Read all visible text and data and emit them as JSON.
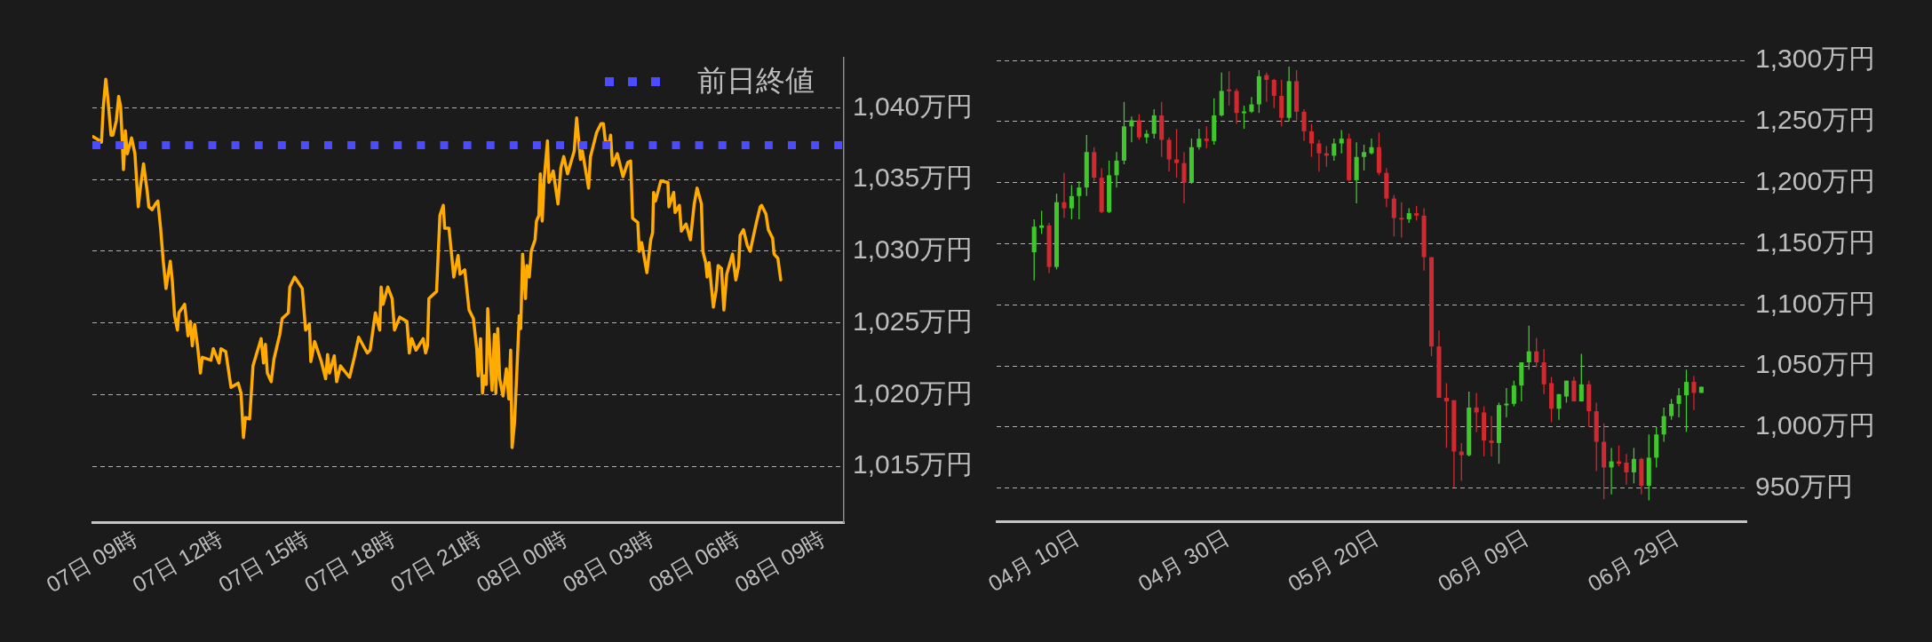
{
  "chart_data": [
    {
      "type": "line",
      "color": "#ffab00",
      "x": [
        "--07-07T09:01",
        "--07-07T09:11",
        "--07-07T09:19",
        "--07-07T09:23",
        "--07-07T09:28",
        "--07-07T09:32",
        "--07-07T09:39",
        "--07-07T09:43",
        "--07-07T09:50",
        "--07-07T09:55",
        "--07-07T09:59",
        "--07-07T10:02",
        "--07-07T10:05",
        "--07-07T10:09",
        "--07-07T10:13",
        "--07-07T10:22",
        "--07-07T10:29",
        "--07-07T10:36",
        "--07-07T10:41",
        "--07-07T10:47",
        "--07-07T10:55",
        "--07-07T10:58",
        "--07-07T11:05",
        "--07-07T11:12",
        "--07-07T11:17",
        "--07-07T11:23",
        "--07-07T11:28",
        "--07-07T11:34",
        "--07-07T11:43",
        "--07-07T11:47",
        "--07-07T11:52",
        "--07-07T11:58",
        "--07-07T12:01",
        "--07-07T12:13",
        "--07-07T12:20",
        "--07-07T12:25",
        "--07-07T12:29",
        "--07-07T12:34",
        "--07-07T12:40",
        "--07-07T12:46",
        "--07-07T12:50",
        "--07-07T13:08",
        "--07-07T13:13",
        "--07-07T13:25",
        "--07-07T13:29",
        "--07-07T13:39",
        "--07-07T13:50",
        "--07-07T14:05",
        "--07-07T14:11",
        "--07-07T14:16",
        "--07-07T14:20",
        "--07-07T14:29",
        "--07-07T14:36",
        "--07-07T14:43",
        "--07-07T14:53",
        "--07-07T14:58",
        "--07-07T15:02",
        "--07-07T15:06",
        "--07-07T15:14",
        "--07-07T15:20",
        "--07-07T15:32",
        "--07-07T15:37",
        "--07-07T15:50",
        "--07-07T15:53",
        "--07-07T16:03",
        "--07-07T16:19",
        "--07-07T16:26",
        "--07-07T16:34",
        "--07-07T16:37",
        "--07-07T16:45",
        "--07-07T16:59",
        "--07-07T17:08",
        "--07-07T17:12",
        "--07-07T17:16",
        "--07-07T17:26",
        "--07-07T17:31",
        "--07-07T17:39",
        "--07-07T17:58",
        "--07-07T18:08",
        "--07-07T18:17",
        "--07-07T18:35",
        "--07-07T18:41",
        "--07-07T18:52",
        "--07-07T19:01",
        "--07-07T19:04",
        "--07-07T19:08",
        "--07-07T19:18",
        "--07-07T19:27",
        "--07-07T19:32",
        "--07-07T19:43",
        "--07-07T19:58",
        "--07-07T20:03",
        "--07-07T20:08",
        "--07-07T20:17",
        "--07-07T20:32",
        "--07-07T20:37",
        "--07-07T20:41",
        "--07-07T20:44",
        "--07-07T21:00",
        "--07-07T21:07",
        "--07-07T21:14",
        "--07-07T21:17",
        "--07-07T21:26",
        "--07-07T21:36",
        "--07-07T21:45",
        "--07-07T21:49",
        "--07-07T21:59",
        "--07-07T22:08",
        "--07-07T22:17",
        "--07-07T22:24",
        "--07-07T22:27",
        "--07-07T22:32",
        "--07-07T22:36",
        "--07-07T22:40",
        "--07-07T22:44",
        "--07-07T22:47",
        "--07-07T22:53",
        "--07-07T22:56",
        "--07-07T23:01",
        "--07-07T23:04",
        "--07-07T23:08",
        "--07-07T23:12",
        "--07-07T23:19",
        "--07-07T23:26",
        "--07-07T23:31",
        "--07-07T23:35",
        "--07-07T23:38",
        "--07-07T23:43",
        "--07-07T23:47",
        "--07-07T23:53",
        "--07-07T23:56",
        "--07-08T00:00",
        "--07-08T00:06",
        "--07-08T00:09",
        "--07-08T00:14",
        "--07-08T00:18",
        "--07-08T00:26",
        "--07-08T00:29",
        "--07-08T00:34",
        "--07-08T00:37",
        "--07-08T00:41",
        "--07-08T00:45",
        "--07-08T00:52",
        "--07-08T00:55",
        "--07-08T01:04",
        "--07-08T01:14",
        "--07-08T01:20",
        "--07-08T01:26",
        "--07-08T01:34",
        "--07-08T01:48",
        "--07-08T01:53",
        "--07-08T02:01",
        "--07-08T02:05",
        "--07-08T02:13",
        "--07-08T02:18",
        "--07-08T02:22",
        "--07-08T02:35",
        "--07-08T02:44",
        "--07-08T02:49",
        "--07-08T02:53",
        "--07-08T03:01",
        "--07-08T03:04",
        "--07-08T03:08",
        "--07-08T03:18",
        "--07-08T03:30",
        "--07-08T03:40",
        "--07-08T03:46",
        "--07-08T03:50",
        "--07-08T04:01",
        "--07-08T04:04",
        "--07-08T04:09",
        "--07-08T04:20",
        "--07-08T04:28",
        "--07-08T04:32",
        "--07-08T04:34",
        "--07-08T04:38",
        "--07-08T04:49",
        "--07-08T05:04",
        "--07-08T05:06",
        "--07-08T05:16",
        "--07-08T05:19",
        "--07-08T05:28",
        "--07-08T05:32",
        "--07-08T05:42",
        "--07-08T05:51",
        "--07-08T05:59",
        "--07-08T06:05",
        "--07-08T06:14",
        "--07-08T06:17",
        "--07-08T06:23",
        "--07-08T06:26",
        "--07-08T06:30",
        "--07-08T06:39",
        "--07-08T06:45",
        "--07-08T06:49",
        "--07-08T06:56",
        "--07-08T07:01",
        "--07-08T07:07",
        "--07-08T07:19",
        "--07-08T07:26",
        "--07-08T07:32",
        "--07-08T07:35",
        "--07-08T07:42",
        "--07-08T07:50",
        "--07-08T07:56",
        "--07-08T08:09",
        "--07-08T08:17",
        "--07-08T08:20",
        "--07-08T08:29",
        "--07-08T08:34",
        "--07-08T08:43",
        "--07-08T08:46",
        "--07-08T08:54",
        "--07-08T09:00"
      ],
      "values": [
        1038.0,
        1037.8,
        1037.6,
        1040.1,
        1042.0,
        1040.8,
        1038.1,
        1038.1,
        1039.1,
        1040.8,
        1040.1,
        1038.1,
        1035.7,
        1038.4,
        1036.8,
        1037.9,
        1036.8,
        1033.1,
        1034.6,
        1036.1,
        1034.1,
        1033.1,
        1032.9,
        1033.3,
        1033.5,
        1031.5,
        1029.4,
        1027.4,
        1029.3,
        1028.0,
        1025.5,
        1024.5,
        1025.7,
        1026.3,
        1024.1,
        1025.1,
        1023.4,
        1024.9,
        1023.4,
        1021.5,
        1022.6,
        1022.4,
        1023.2,
        1022.2,
        1023.2,
        1023.0,
        1020.5,
        1020.8,
        1020.1,
        1017.0,
        1018.4,
        1018.3,
        1022.0,
        1022.8,
        1023.9,
        1022.2,
        1023.5,
        1021.5,
        1020.9,
        1022.5,
        1024.2,
        1025.3,
        1025.7,
        1027.5,
        1028.2,
        1027.4,
        1024.5,
        1024.9,
        1022.3,
        1023.7,
        1022.3,
        1021.1,
        1022.8,
        1021.5,
        1022.7,
        1020.9,
        1022.0,
        1021.2,
        1022.6,
        1024.0,
        1022.9,
        1023.1,
        1025.7,
        1024.5,
        1027.5,
        1026.3,
        1027.5,
        1026.7,
        1024.5,
        1025.4,
        1025.1,
        1022.9,
        1023.9,
        1023.1,
        1023.9,
        1022.9,
        1023.4,
        1026.7,
        1027.2,
        1032.5,
        1033.2,
        1031.6,
        1031.6,
        1028.2,
        1029.7,
        1028.4,
        1028.7,
        1025.9,
        1025.3,
        1023.2,
        1021.3,
        1023.9,
        1020.1,
        1021.3,
        1020.7,
        1026.0,
        1022.0,
        1020.3,
        1024.2,
        1020.1,
        1024.6,
        1021.1,
        1019.9,
        1021.8,
        1019.7,
        1023.1,
        1016.3,
        1018.0,
        1020.9,
        1025.5,
        1024.6,
        1029.8,
        1026.7,
        1029.0,
        1028.2,
        1030.0,
        1030.8,
        1032.1,
        1032.5,
        1035.4,
        1032.1,
        1035.0,
        1037.7,
        1034.8,
        1035.6,
        1033.3,
        1035.8,
        1036.6,
        1035.4,
        1037.0,
        1039.3,
        1036.4,
        1037.0,
        1035.4,
        1034.4,
        1036.6,
        1038.3,
        1038.9,
        1038.9,
        1037.7,
        1037.5,
        1038.1,
        1036.0,
        1036.8,
        1035.2,
        1036.2,
        1036.3,
        1032.3,
        1032.0,
        1030.0,
        1030.6,
        1028.5,
        1030.8,
        1031.3,
        1034.1,
        1033.5,
        1034.9,
        1034.8,
        1033.1,
        1034.1,
        1032.7,
        1033.2,
        1031.4,
        1031.9,
        1030.8,
        1033.3,
        1034.4,
        1033.3,
        1030.0,
        1029.2,
        1028.2,
        1029.2,
        1026.1,
        1027.3,
        1029.0,
        1028.8,
        1025.9,
        1028.4,
        1029.8,
        1028.0,
        1029.0,
        1031.1,
        1031.5,
        1030.4,
        1030.0,
        1032.0,
        1033.1,
        1033.2,
        1032.6,
        1031.5,
        1030.9,
        1029.8,
        1029.5,
        1028.0
      ],
      "xlim": [
        "--07-07T09:00",
        "--07-08T11:12"
      ],
      "xticks": [
        {
          "value": "--07-07T09:00",
          "label": "07日 09時"
        },
        {
          "value": "--07-07T12:00",
          "label": "07日 12時"
        },
        {
          "value": "--07-07T15:00",
          "label": "07日 15時"
        },
        {
          "value": "--07-07T18:00",
          "label": "07日 18時"
        },
        {
          "value": "--07-07T21:00",
          "label": "07日 21時"
        },
        {
          "value": "--07-08T00:00",
          "label": "08日 00時"
        },
        {
          "value": "--07-08T03:00",
          "label": "08日 03時"
        },
        {
          "value": "--07-08T06:00",
          "label": "08日 06時"
        },
        {
          "value": "--07-08T09:00",
          "label": "08日 09時"
        }
      ],
      "ylim": [
        1011.1,
        1043.5
      ],
      "yticks": [
        {
          "value": 1015,
          "label": "1,015万円"
        },
        {
          "value": 1020,
          "label": "1,020万円"
        },
        {
          "value": 1025,
          "label": "1,025万円"
        },
        {
          "value": 1030,
          "label": "1,030万円"
        },
        {
          "value": 1035,
          "label": "1,035万円"
        },
        {
          "value": 1040,
          "label": "1,040万円"
        }
      ],
      "ref_lines": [
        {
          "axis": "y",
          "value": 1037.4,
          "label": "前日終値",
          "color": "#4b4bff",
          "line_style": "dotted"
        }
      ],
      "grid": "y",
      "legend": "top right"
    },
    {
      "type": "candlestick",
      "x": [
        "--04-10",
        "--04-11",
        "--04-12",
        "--04-13",
        "--04-14",
        "--04-15",
        "--04-16",
        "--04-17",
        "--04-18",
        "--04-19",
        "--04-20",
        "--04-21",
        "--04-22",
        "--04-23",
        "--04-24",
        "--04-25",
        "--04-26",
        "--04-27",
        "--04-28",
        "--04-29",
        "--04-30",
        "--05-01",
        "--05-02",
        "--05-03",
        "--05-04",
        "--05-05",
        "--05-06",
        "--05-07",
        "--05-08",
        "--05-09",
        "--05-10",
        "--05-11",
        "--05-12",
        "--05-13",
        "--05-14",
        "--05-15",
        "--05-16",
        "--05-17",
        "--05-18",
        "--05-19",
        "--05-20",
        "--05-21",
        "--05-22",
        "--05-23",
        "--05-24",
        "--05-25",
        "--05-26",
        "--05-27",
        "--05-28",
        "--05-29",
        "--05-30",
        "--05-31",
        "--06-01",
        "--06-02",
        "--06-03",
        "--06-04",
        "--06-05",
        "--06-06",
        "--06-07",
        "--06-08",
        "--06-09",
        "--06-10",
        "--06-11",
        "--06-12",
        "--06-13",
        "--06-14",
        "--06-15",
        "--06-16",
        "--06-17",
        "--06-18",
        "--06-19",
        "--06-20",
        "--06-21",
        "--06-22",
        "--06-23",
        "--06-24",
        "--06-25",
        "--06-26",
        "--06-27",
        "--06-28",
        "--06-29",
        "--06-30",
        "--07-01",
        "--07-02",
        "--07-03",
        "--07-04",
        "--07-05",
        "--07-06",
        "--07-07",
        "--07-08"
      ],
      "ohlc": [
        [
          1143,
          1170,
          1120,
          1164
        ],
        [
          1163,
          1177,
          1158,
          1165
        ],
        [
          1165,
          1167,
          1126,
          1131
        ],
        [
          1131,
          1191,
          1129,
          1184
        ],
        [
          1184,
          1208,
          1171,
          1179
        ],
        [
          1179,
          1198,
          1170,
          1189
        ],
        [
          1189,
          1201,
          1170,
          1196
        ],
        [
          1196,
          1239,
          1189,
          1225
        ],
        [
          1225,
          1229,
          1201,
          1204
        ],
        [
          1204,
          1212,
          1175,
          1176
        ],
        [
          1176,
          1218,
          1175,
          1206
        ],
        [
          1206,
          1225,
          1196,
          1218
        ],
        [
          1218,
          1266,
          1215,
          1246
        ],
        [
          1246,
          1254,
          1233,
          1251
        ],
        [
          1251,
          1256,
          1235,
          1237
        ],
        [
          1237,
          1243,
          1232,
          1240
        ],
        [
          1240,
          1260,
          1236,
          1255
        ],
        [
          1255,
          1266,
          1221,
          1235
        ],
        [
          1235,
          1237,
          1209,
          1219
        ],
        [
          1219,
          1244,
          1204,
          1216
        ],
        [
          1216,
          1225,
          1183,
          1200
        ],
        [
          1200,
          1236,
          1199,
          1229
        ],
        [
          1229,
          1244,
          1227,
          1236
        ],
        [
          1236,
          1246,
          1228,
          1234
        ],
        [
          1234,
          1269,
          1231,
          1255
        ],
        [
          1255,
          1290,
          1254,
          1275
        ],
        [
          1276,
          1291,
          1263,
          1275
        ],
        [
          1275,
          1277,
          1248,
          1257
        ],
        [
          1257,
          1263,
          1244,
          1258
        ],
        [
          1258,
          1270,
          1257,
          1264
        ],
        [
          1264,
          1292,
          1257,
          1287
        ],
        [
          1288,
          1290,
          1266,
          1284
        ],
        [
          1284,
          1285,
          1261,
          1271
        ],
        [
          1271,
          1284,
          1246,
          1253
        ],
        [
          1253,
          1295,
          1250,
          1283
        ],
        [
          1283,
          1292,
          1251,
          1258
        ],
        [
          1258,
          1260,
          1234,
          1242
        ],
        [
          1242,
          1248,
          1221,
          1232
        ],
        [
          1232,
          1235,
          1209,
          1224
        ],
        [
          1224,
          1230,
          1213,
          1222
        ],
        [
          1222,
          1236,
          1218,
          1232
        ],
        [
          1232,
          1243,
          1224,
          1236
        ],
        [
          1236,
          1240,
          1201,
          1202
        ],
        [
          1202,
          1233,
          1183,
          1221
        ],
        [
          1221,
          1231,
          1210,
          1225
        ],
        [
          1224,
          1236,
          1223,
          1229
        ],
        [
          1229,
          1241,
          1206,
          1208
        ],
        [
          1208,
          1212,
          1180,
          1187
        ],
        [
          1187,
          1190,
          1156,
          1171
        ],
        [
          1171,
          1184,
          1155,
          1170
        ],
        [
          1170,
          1179,
          1167,
          1175
        ],
        [
          1175,
          1181,
          1169,
          1173
        ],
        [
          1173,
          1179,
          1128,
          1139
        ],
        [
          1139,
          1139,
          1058,
          1066
        ],
        [
          1066,
          1079,
          1024,
          1024
        ],
        [
          1024,
          1036,
          983,
          1021
        ],
        [
          1022,
          1022,
          951,
          980
        ],
        [
          980,
          987,
          956,
          977
        ],
        [
          977,
          1029,
          976,
          1016
        ],
        [
          1016,
          1028,
          996,
          1012
        ],
        [
          1012,
          1017,
          976,
          989
        ],
        [
          989,
          1009,
          976,
          987
        ],
        [
          987,
          1020,
          970,
          1018
        ],
        [
          1018,
          1032,
          1008,
          1019
        ],
        [
          1019,
          1038,
          1017,
          1034
        ],
        [
          1034,
          1053,
          1021,
          1053
        ],
        [
          1053,
          1083,
          1047,
          1062
        ],
        [
          1062,
          1073,
          1049,
          1053
        ],
        [
          1053,
          1064,
          1027,
          1035
        ],
        [
          1036,
          1041,
          1004,
          1015
        ],
        [
          1015,
          1027,
          1006,
          1027
        ],
        [
          1025,
          1038,
          1020,
          1038
        ],
        [
          1038,
          1041,
          1021,
          1021
        ],
        [
          1021,
          1060,
          1021,
          1035
        ],
        [
          1035,
          1038,
          1000,
          1013
        ],
        [
          1013,
          1020,
          964,
          988
        ],
        [
          988,
          1003,
          941,
          967
        ],
        [
          967,
          983,
          945,
          972
        ],
        [
          972,
          985,
          968,
          970
        ],
        [
          971,
          978,
          953,
          963
        ],
        [
          963,
          983,
          954,
          974
        ],
        [
          974,
          975,
          945,
          952
        ],
        [
          952,
          994,
          940,
          975
        ],
        [
          975,
          1000,
          967,
          994
        ],
        [
          994,
          1016,
          988,
          1009
        ],
        [
          1009,
          1023,
          1006,
          1019
        ],
        [
          1019,
          1032,
          1008,
          1026
        ],
        [
          1026,
          1047,
          996,
          1037
        ],
        [
          1037,
          1042,
          1014,
          1028
        ],
        [
          1028,
          1033,
          1028,
          1033
        ]
      ],
      "colors": [
        "#3fc82b",
        "#3fc82b",
        "#d0292f",
        "#3fc82b",
        "#d0292f",
        "#3fc82b",
        "#3fc82b",
        "#3fc82b",
        "#d0292f",
        "#d0292f",
        "#3fc82b",
        "#3fc82b",
        "#3fc82b",
        "#3fc82b",
        "#d0292f",
        "#3fc82b",
        "#3fc82b",
        "#d0292f",
        "#d0292f",
        "#d0292f",
        "#d0292f",
        "#3fc82b",
        "#3fc82b",
        "#d0292f",
        "#3fc82b",
        "#3fc82b",
        "#d0292f",
        "#d0292f",
        "#3fc82b",
        "#3fc82b",
        "#3fc82b",
        "#d0292f",
        "#d0292f",
        "#d0292f",
        "#3fc82b",
        "#d0292f",
        "#d0292f",
        "#d0292f",
        "#d0292f",
        "#d0292f",
        "#3fc82b",
        "#3fc82b",
        "#d0292f",
        "#3fc82b",
        "#3fc82b",
        "#3fc82b",
        "#d0292f",
        "#d0292f",
        "#d0292f",
        "#d0292f",
        "#3fc82b",
        "#d0292f",
        "#d0292f",
        "#d0292f",
        "#d0292f",
        "#d0292f",
        "#d0292f",
        "#d0292f",
        "#3fc82b",
        "#d0292f",
        "#d0292f",
        "#d0292f",
        "#3fc82b",
        "#3fc82b",
        "#3fc82b",
        "#3fc82b",
        "#3fc82b",
        "#d0292f",
        "#d0292f",
        "#d0292f",
        "#3fc82b",
        "#3fc82b",
        "#d0292f",
        "#3fc82b",
        "#d0292f",
        "#d0292f",
        "#d0292f",
        "#3fc82b",
        "#d0292f",
        "#d0292f",
        "#3fc82b",
        "#d0292f",
        "#3fc82b",
        "#3fc82b",
        "#3fc82b",
        "#3fc82b",
        "#3fc82b",
        "#3fc82b",
        "#d0292f",
        "#3fc82b"
      ],
      "xlim": [
        "--04-05",
        "--07-14"
      ],
      "xticks": [
        {
          "value": "--04-10",
          "label": "04月 10日"
        },
        {
          "value": "--04-30",
          "label": "04月 30日"
        },
        {
          "value": "--05-20",
          "label": "05月 20日"
        },
        {
          "value": "--06-09",
          "label": "06月 09日"
        },
        {
          "value": "--06-29",
          "label": "06月 29日"
        }
      ],
      "ylim": [
        923,
        1300
      ],
      "yticks": [
        {
          "value": 950,
          "label": "950万円"
        },
        {
          "value": 1000,
          "label": "1,000万円"
        },
        {
          "value": 1050,
          "label": "1,050万円"
        },
        {
          "value": 1100,
          "label": "1,100万円"
        },
        {
          "value": 1150,
          "label": "1,150万円"
        },
        {
          "value": 1200,
          "label": "1,200万円"
        },
        {
          "value": 1250,
          "label": "1,250万円"
        },
        {
          "value": 1300,
          "label": "1,300万円"
        }
      ],
      "grid": "y"
    }
  ]
}
